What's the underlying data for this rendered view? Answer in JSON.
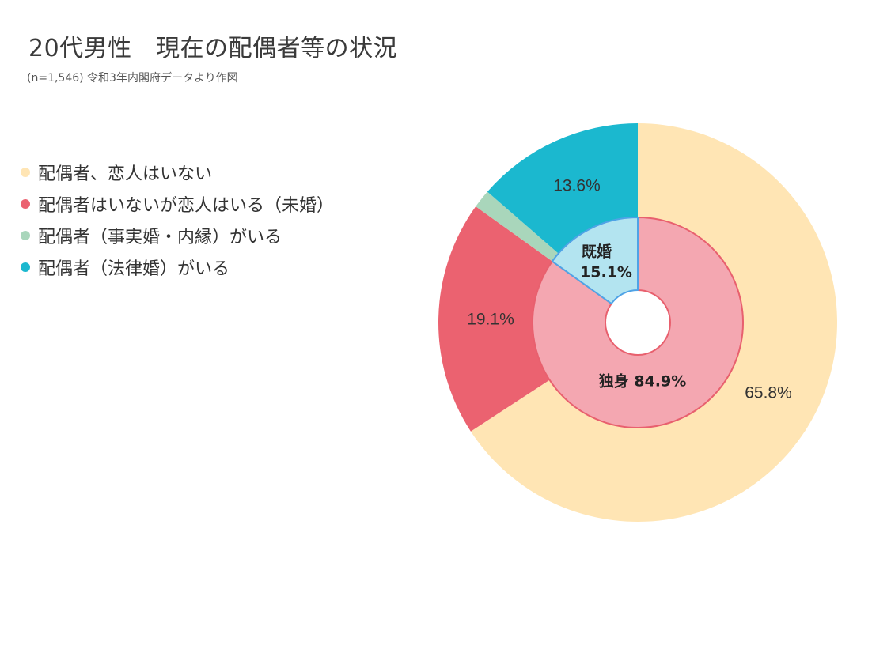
{
  "chart_data": {
    "type": "pie",
    "title": "20代男性　現在の配偶者等の状況",
    "subtitle": "(n=1,546)  令和3年内閣府データより作図",
    "legend_position": "left",
    "outer_ring": {
      "slices": [
        {
          "name": "配偶者、恋人はいない",
          "value": 65.8,
          "label": "65.8%",
          "color": "#FFE5B4"
        },
        {
          "name": "配偶者はいないが恋人はいる（未婚）",
          "value": 19.1,
          "label": "19.1%",
          "color": "#EB6270"
        },
        {
          "name": "配偶者（事実婚・内縁）がいる",
          "value": 1.5,
          "label": "",
          "color": "#A9D6BB"
        },
        {
          "name": "配偶者（法律婚）がいる",
          "value": 13.6,
          "label": "13.6%",
          "color": "#1BB8CF"
        }
      ]
    },
    "inner_ring": {
      "slices": [
        {
          "name": "独身",
          "value": 84.9,
          "label": "独身 84.9%",
          "color": "#F4A7B1"
        },
        {
          "name": "既婚",
          "value": 15.1,
          "label_line1": "既婚",
          "label_line2": "15.1%",
          "color": "#B3E4F0"
        }
      ]
    }
  },
  "colors": {
    "background": "#FFFFFF",
    "inner_single_stroke": "#E8606E",
    "inner_married_stroke": "#4FA3E6"
  }
}
